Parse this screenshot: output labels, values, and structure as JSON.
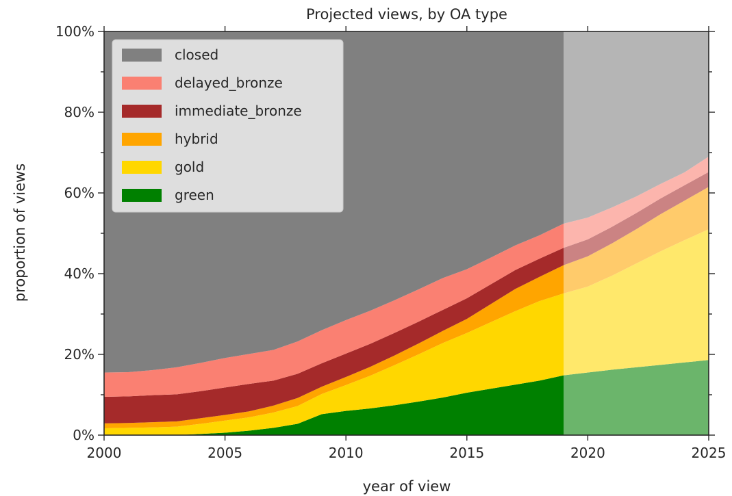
{
  "chart_data": {
    "type": "area",
    "stacked": true,
    "title": "Projected views, by OA type",
    "xlabel": "year of view",
    "ylabel": "proportion of views",
    "xlim": [
      2000,
      2025
    ],
    "ylim": [
      0,
      1
    ],
    "xticks": [
      2000,
      2005,
      2010,
      2015,
      2020,
      2025
    ],
    "xtick_labels": [
      "2000",
      "2005",
      "2010",
      "2015",
      "2020",
      "2025"
    ],
    "yticks": [
      0,
      0.2,
      0.4,
      0.6,
      0.8,
      1.0
    ],
    "ytick_labels": [
      "0%",
      "20%",
      "40%",
      "60%",
      "80%",
      "100%"
    ],
    "projection_start": 2019,
    "grid": false,
    "legend_position": "top-left",
    "x": [
      2000,
      2001,
      2002,
      2003,
      2004,
      2005,
      2006,
      2007,
      2008,
      2009,
      2010,
      2011,
      2012,
      2013,
      2014,
      2015,
      2016,
      2017,
      2018,
      2019,
      2020,
      2021,
      2022,
      2023,
      2024,
      2025
    ],
    "series": [
      {
        "name": "green",
        "color": "#008000",
        "values": [
          0.0,
          0.0,
          0.0,
          0.0,
          0.003,
          0.006,
          0.011,
          0.018,
          0.028,
          0.052,
          0.06,
          0.066,
          0.074,
          0.083,
          0.093,
          0.105,
          0.115,
          0.125,
          0.135,
          0.148,
          0.155,
          0.162,
          0.168,
          0.174,
          0.18,
          0.186
        ]
      },
      {
        "name": "gold",
        "color": "#ffd700",
        "values": [
          0.017,
          0.018,
          0.019,
          0.021,
          0.025,
          0.03,
          0.033,
          0.038,
          0.044,
          0.05,
          0.064,
          0.081,
          0.099,
          0.117,
          0.135,
          0.148,
          0.165,
          0.182,
          0.197,
          0.203,
          0.213,
          0.233,
          0.257,
          0.281,
          0.303,
          0.324
        ]
      },
      {
        "name": "hybrid",
        "color": "#ffa500",
        "values": [
          0.012,
          0.012,
          0.013,
          0.013,
          0.014,
          0.014,
          0.015,
          0.017,
          0.02,
          0.018,
          0.02,
          0.022,
          0.024,
          0.027,
          0.03,
          0.035,
          0.045,
          0.055,
          0.06,
          0.07,
          0.075,
          0.08,
          0.085,
          0.092,
          0.098,
          0.105
        ]
      },
      {
        "name": "immediate_bronze",
        "color": "#a52a2a",
        "values": [
          0.066,
          0.066,
          0.067,
          0.067,
          0.067,
          0.068,
          0.068,
          0.062,
          0.06,
          0.058,
          0.058,
          0.057,
          0.056,
          0.054,
          0.052,
          0.051,
          0.049,
          0.047,
          0.045,
          0.043,
          0.042,
          0.041,
          0.04,
          0.039,
          0.038,
          0.037
        ]
      },
      {
        "name": "delayed_bronze",
        "color": "#fa8072",
        "values": [
          0.06,
          0.06,
          0.062,
          0.067,
          0.07,
          0.073,
          0.074,
          0.076,
          0.08,
          0.082,
          0.083,
          0.082,
          0.081,
          0.08,
          0.079,
          0.072,
          0.066,
          0.061,
          0.058,
          0.06,
          0.054,
          0.048,
          0.041,
          0.036,
          0.032,
          0.038
        ]
      },
      {
        "name": "closed",
        "color": "#808080",
        "values": [
          0.845,
          0.844,
          0.839,
          0.832,
          0.821,
          0.809,
          0.799,
          0.789,
          0.768,
          0.74,
          0.715,
          0.692,
          0.666,
          0.639,
          0.611,
          0.589,
          0.56,
          0.53,
          0.505,
          0.476,
          0.461,
          0.436,
          0.409,
          0.378,
          0.349,
          0.31
        ]
      }
    ]
  }
}
